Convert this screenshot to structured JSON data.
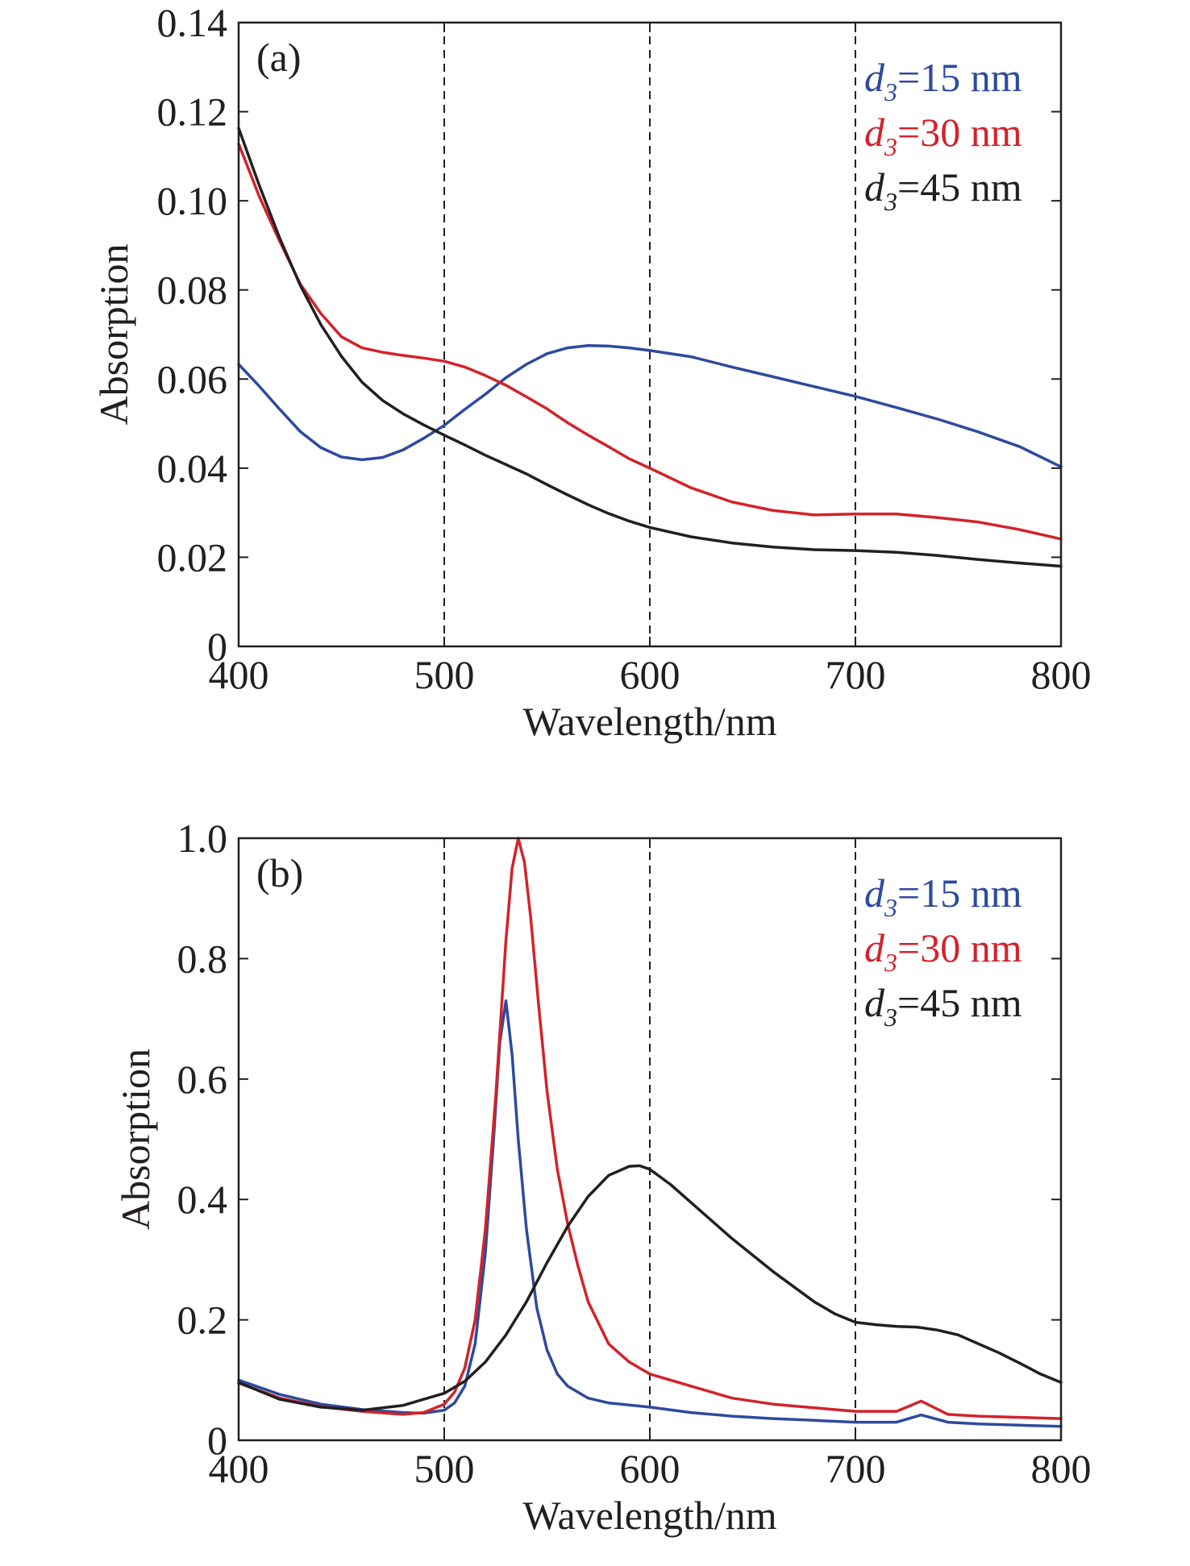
{
  "chart_data": [
    {
      "type": "line",
      "panel_label": "(a)",
      "xlabel": "Wavelength/nm",
      "ylabel": "Absorption",
      "xlim": [
        400,
        800
      ],
      "ylim": [
        0,
        0.14
      ],
      "xticks": [
        "400",
        "500",
        "600",
        "700",
        "800"
      ],
      "yticks": [
        "0",
        "0.02",
        "0.04",
        "0.06",
        "0.08",
        "0.10",
        "0.12",
        "0.14"
      ],
      "xtick_values": [
        400,
        500,
        600,
        700,
        800
      ],
      "ytick_values": [
        0,
        0.02,
        0.04,
        0.06,
        0.08,
        0.1,
        0.12,
        0.14
      ],
      "reference_lines_x": [
        500,
        600,
        700
      ],
      "legend_placement": "top-right",
      "series": [
        {
          "name": "d3=15 nm",
          "label_main": "d",
          "label_sub": "3",
          "label_rest": "=15 nm",
          "color": "#2e4a9e",
          "x": [
            400,
            410,
            420,
            430,
            440,
            450,
            460,
            470,
            480,
            490,
            500,
            510,
            520,
            530,
            540,
            550,
            560,
            570,
            580,
            590,
            600,
            620,
            640,
            660,
            680,
            700,
            720,
            740,
            760,
            780,
            800
          ],
          "y": [
            0.0633,
            0.0584,
            0.0532,
            0.0482,
            0.0446,
            0.0425,
            0.0419,
            0.0424,
            0.0441,
            0.0467,
            0.0496,
            0.0532,
            0.0566,
            0.0603,
            0.0633,
            0.0657,
            0.067,
            0.0675,
            0.0674,
            0.067,
            0.0664,
            0.065,
            0.0627,
            0.0605,
            0.0583,
            0.0561,
            0.0536,
            0.051,
            0.0481,
            0.0448,
            0.0403
          ]
        },
        {
          "name": "d3=30 nm",
          "label_main": "d",
          "label_sub": "3",
          "label_rest": "=30 nm",
          "color": "#d2232a",
          "x": [
            400,
            410,
            420,
            430,
            440,
            450,
            460,
            470,
            480,
            490,
            500,
            510,
            520,
            530,
            540,
            550,
            560,
            570,
            580,
            590,
            600,
            620,
            640,
            660,
            680,
            700,
            720,
            740,
            760,
            780,
            800
          ],
          "y": [
            0.1128,
            0.101,
            0.0909,
            0.0813,
            0.0747,
            0.0695,
            0.067,
            0.066,
            0.0653,
            0.0647,
            0.064,
            0.0627,
            0.0608,
            0.0586,
            0.056,
            0.0533,
            0.0502,
            0.0474,
            0.0448,
            0.0421,
            0.04,
            0.0356,
            0.0324,
            0.0305,
            0.0295,
            0.0297,
            0.0297,
            0.0289,
            0.0279,
            0.0262,
            0.0241
          ]
        },
        {
          "name": "d3=45 nm",
          "label_main": "d",
          "label_sub": "3",
          "label_rest": "=45 nm",
          "color": "#231f20",
          "x": [
            400,
            410,
            420,
            430,
            440,
            450,
            460,
            470,
            480,
            490,
            500,
            510,
            520,
            530,
            540,
            550,
            560,
            570,
            580,
            590,
            600,
            620,
            640,
            660,
            680,
            700,
            720,
            740,
            760,
            780,
            800
          ],
          "y": [
            0.1163,
            0.1035,
            0.0916,
            0.081,
            0.0722,
            0.0651,
            0.0593,
            0.0552,
            0.0522,
            0.0497,
            0.0474,
            0.0452,
            0.0429,
            0.0408,
            0.0387,
            0.0363,
            0.034,
            0.0318,
            0.0298,
            0.0281,
            0.0267,
            0.0246,
            0.0232,
            0.0223,
            0.0217,
            0.0215,
            0.0211,
            0.0204,
            0.0195,
            0.0187,
            0.018
          ]
        }
      ]
    },
    {
      "type": "line",
      "panel_label": "(b)",
      "xlabel": "Wavelength/nm",
      "ylabel": "Absorption",
      "xlim": [
        400,
        800
      ],
      "ylim": [
        0,
        1.0
      ],
      "xticks": [
        "400",
        "500",
        "600",
        "700",
        "800"
      ],
      "yticks": [
        "0",
        "0.2",
        "0.4",
        "0.6",
        "0.8",
        "1.0"
      ],
      "xtick_values": [
        400,
        500,
        600,
        700,
        800
      ],
      "ytick_values": [
        0,
        0.2,
        0.4,
        0.6,
        0.8,
        1.0
      ],
      "reference_lines_x": [
        500,
        600,
        700
      ],
      "legend_placement": "top-right",
      "series": [
        {
          "name": "d3=15 nm",
          "label_main": "d",
          "label_sub": "3",
          "label_rest": "=15 nm",
          "color": "#2e4a9e",
          "x": [
            400,
            420,
            440,
            460,
            480,
            490,
            500,
            505,
            510,
            515,
            520,
            524,
            527,
            530,
            533,
            536,
            540,
            545,
            550,
            555,
            560,
            570,
            580,
            600,
            620,
            640,
            660,
            680,
            700,
            720,
            732,
            745,
            760,
            780,
            800
          ],
          "y": [
            0.1,
            0.076,
            0.06,
            0.051,
            0.046,
            0.045,
            0.05,
            0.062,
            0.09,
            0.16,
            0.31,
            0.5,
            0.66,
            0.73,
            0.64,
            0.5,
            0.35,
            0.22,
            0.15,
            0.11,
            0.09,
            0.07,
            0.062,
            0.055,
            0.046,
            0.04,
            0.036,
            0.033,
            0.03,
            0.03,
            0.042,
            0.03,
            0.027,
            0.025,
            0.023
          ]
        },
        {
          "name": "d3=30 nm",
          "label_main": "d",
          "label_sub": "3",
          "label_rest": "=30 nm",
          "color": "#d2232a",
          "x": [
            400,
            420,
            440,
            460,
            480,
            490,
            500,
            505,
            510,
            515,
            520,
            525,
            530,
            533,
            536,
            539,
            542,
            546,
            550,
            555,
            560,
            565,
            570,
            580,
            590,
            600,
            620,
            640,
            660,
            680,
            700,
            720,
            732,
            745,
            760,
            780,
            800
          ],
          "y": [
            0.095,
            0.07,
            0.056,
            0.048,
            0.043,
            0.046,
            0.06,
            0.08,
            0.12,
            0.2,
            0.35,
            0.57,
            0.83,
            0.95,
            1.0,
            0.96,
            0.87,
            0.72,
            0.58,
            0.45,
            0.36,
            0.29,
            0.23,
            0.16,
            0.13,
            0.11,
            0.09,
            0.07,
            0.06,
            0.054,
            0.048,
            0.048,
            0.065,
            0.043,
            0.04,
            0.038,
            0.036
          ]
        },
        {
          "name": "d3=45 nm",
          "label_main": "d",
          "label_sub": "3",
          "label_rest": "=45 nm",
          "color": "#231f20",
          "x": [
            400,
            420,
            440,
            460,
            480,
            500,
            510,
            520,
            530,
            540,
            550,
            560,
            570,
            580,
            590,
            595,
            600,
            610,
            620,
            640,
            660,
            680,
            690,
            700,
            710,
            720,
            730,
            740,
            750,
            760,
            770,
            780,
            790,
            800
          ],
          "y": [
            0.096,
            0.068,
            0.055,
            0.05,
            0.058,
            0.078,
            0.098,
            0.13,
            0.175,
            0.23,
            0.295,
            0.355,
            0.405,
            0.44,
            0.455,
            0.456,
            0.45,
            0.425,
            0.395,
            0.335,
            0.28,
            0.23,
            0.21,
            0.196,
            0.192,
            0.189,
            0.188,
            0.183,
            0.175,
            0.16,
            0.145,
            0.128,
            0.11,
            0.096
          ]
        }
      ]
    }
  ]
}
